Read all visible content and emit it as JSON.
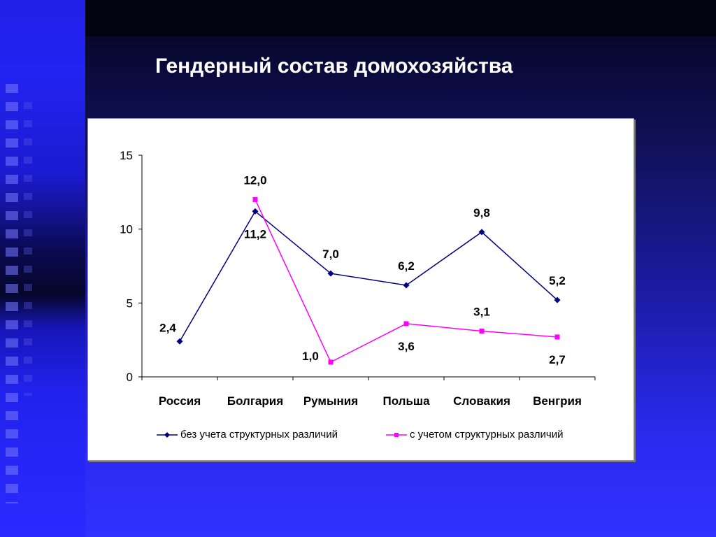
{
  "slide": {
    "title": "Гендерный состав домохозяйства"
  },
  "chart_data": {
    "type": "line",
    "categories": [
      "Россия",
      "Болгария",
      "Румыния",
      "Польша",
      "Словакия",
      "Венгрия"
    ],
    "ylim": [
      0,
      15
    ],
    "yticks": [
      0,
      5,
      10,
      15
    ],
    "grid": false,
    "legend_position": "bottom",
    "series": [
      {
        "name": "без учета структурных различий",
        "values": [
          2.4,
          11.2,
          7.0,
          6.2,
          9.8,
          5.2
        ],
        "labels": [
          "2,4",
          "11,2",
          "7,0",
          "6,2",
          "9,8",
          "5,2"
        ],
        "color": "#000080",
        "marker": "diamond"
      },
      {
        "name": "с учетом структурных различий",
        "values": [
          null,
          12.0,
          1.0,
          3.6,
          3.1,
          2.7
        ],
        "labels": [
          null,
          "12,0",
          "1,0",
          "3,6",
          "3,1",
          "2,7"
        ],
        "color": "#ff00ff",
        "marker": "square"
      }
    ]
  }
}
